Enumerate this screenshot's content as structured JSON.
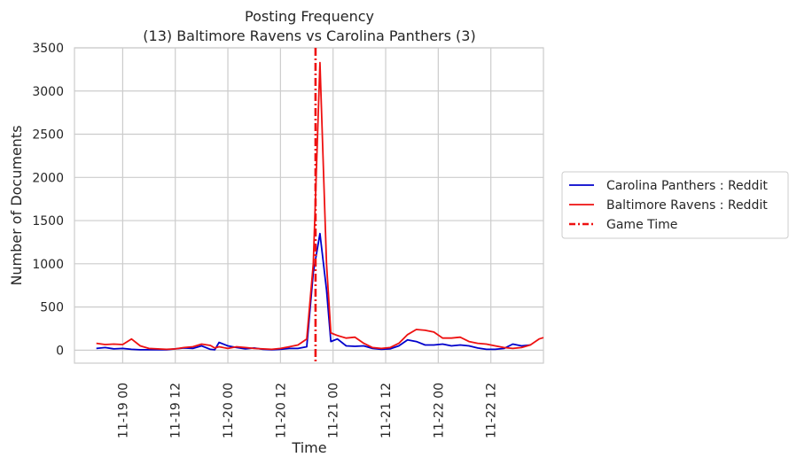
{
  "chart_data": {
    "type": "line",
    "title": "Posting Frequency",
    "subtitle": "(13) Baltimore Ravens vs Carolina Panthers (3)",
    "xlabel": "Time",
    "ylabel": "Number of Documents",
    "ylim": [
      -150,
      3500
    ],
    "xlim": [
      "2018-11-18 13:00",
      "2018-11-23 00:00"
    ],
    "grid": true,
    "legend_position": "right",
    "yticks": [
      0,
      500,
      1000,
      1500,
      2000,
      2500,
      3000,
      3500
    ],
    "xticks": [
      "2018-11-19 00:00",
      "2018-11-19 12:00",
      "2018-11-20 00:00",
      "2018-11-20 12:00",
      "2018-11-21 00:00",
      "2018-11-21 12:00",
      "2018-11-22 00:00",
      "2018-11-22 12:00"
    ],
    "xtick_labels": [
      "11-19 00",
      "11-19 12",
      "11-20 00",
      "11-20 12",
      "11-21 00",
      "11-21 12",
      "11-22 00",
      "11-22 12"
    ],
    "series": [
      {
        "name": "Carolina Panthers : Reddit",
        "color": "#0000cc",
        "points": [
          [
            "2018-11-18 18:00",
            20
          ],
          [
            "2018-11-18 20:00",
            30
          ],
          [
            "2018-11-18 22:00",
            15
          ],
          [
            "2018-11-19 00:00",
            20
          ],
          [
            "2018-11-19 02:00",
            10
          ],
          [
            "2018-11-19 04:00",
            5
          ],
          [
            "2018-11-19 06:00",
            5
          ],
          [
            "2018-11-19 08:00",
            5
          ],
          [
            "2018-11-19 10:00",
            5
          ],
          [
            "2018-11-19 12:00",
            15
          ],
          [
            "2018-11-19 14:00",
            25
          ],
          [
            "2018-11-19 16:00",
            20
          ],
          [
            "2018-11-19 18:00",
            50
          ],
          [
            "2018-11-19 20:00",
            10
          ],
          [
            "2018-11-19 21:00",
            5
          ],
          [
            "2018-11-19 22:00",
            90
          ],
          [
            "2018-11-20 00:00",
            50
          ],
          [
            "2018-11-20 02:00",
            30
          ],
          [
            "2018-11-20 04:00",
            15
          ],
          [
            "2018-11-20 06:00",
            25
          ],
          [
            "2018-11-20 08:00",
            10
          ],
          [
            "2018-11-20 10:00",
            5
          ],
          [
            "2018-11-20 12:00",
            10
          ],
          [
            "2018-11-20 14:00",
            20
          ],
          [
            "2018-11-20 16:00",
            20
          ],
          [
            "2018-11-20 18:00",
            40
          ],
          [
            "2018-11-20 19:30",
            900
          ],
          [
            "2018-11-20 21:00",
            1350
          ],
          [
            "2018-11-20 22:30",
            700
          ],
          [
            "2018-11-20 23:30",
            100
          ],
          [
            "2018-11-21 01:00",
            130
          ],
          [
            "2018-11-21 03:00",
            50
          ],
          [
            "2018-11-21 05:00",
            45
          ],
          [
            "2018-11-21 07:00",
            50
          ],
          [
            "2018-11-21 09:00",
            20
          ],
          [
            "2018-11-21 11:00",
            10
          ],
          [
            "2018-11-21 13:00",
            15
          ],
          [
            "2018-11-21 15:00",
            50
          ],
          [
            "2018-11-21 17:00",
            120
          ],
          [
            "2018-11-21 19:00",
            100
          ],
          [
            "2018-11-21 21:00",
            60
          ],
          [
            "2018-11-21 23:00",
            60
          ],
          [
            "2018-11-22 01:00",
            70
          ],
          [
            "2018-11-22 03:00",
            50
          ],
          [
            "2018-11-22 05:00",
            60
          ],
          [
            "2018-11-22 07:00",
            50
          ],
          [
            "2018-11-22 09:00",
            25
          ],
          [
            "2018-11-22 11:00",
            10
          ],
          [
            "2018-11-22 13:00",
            10
          ],
          [
            "2018-11-22 15:00",
            20
          ],
          [
            "2018-11-22 17:00",
            70
          ],
          [
            "2018-11-22 19:00",
            50
          ],
          [
            "2018-11-22 21:00",
            60
          ]
        ]
      },
      {
        "name": "Baltimore Ravens : Reddit",
        "color": "#ee1111",
        "points": [
          [
            "2018-11-18 18:00",
            80
          ],
          [
            "2018-11-18 20:00",
            65
          ],
          [
            "2018-11-18 22:00",
            70
          ],
          [
            "2018-11-19 00:00",
            65
          ],
          [
            "2018-11-19 02:00",
            130
          ],
          [
            "2018-11-19 04:00",
            50
          ],
          [
            "2018-11-19 06:00",
            20
          ],
          [
            "2018-11-19 08:00",
            15
          ],
          [
            "2018-11-19 10:00",
            10
          ],
          [
            "2018-11-19 12:00",
            15
          ],
          [
            "2018-11-19 14:00",
            30
          ],
          [
            "2018-11-19 16:00",
            40
          ],
          [
            "2018-11-19 18:00",
            70
          ],
          [
            "2018-11-19 20:00",
            55
          ],
          [
            "2018-11-19 21:00",
            25
          ],
          [
            "2018-11-19 22:00",
            40
          ],
          [
            "2018-11-20 00:00",
            20
          ],
          [
            "2018-11-20 02:00",
            40
          ],
          [
            "2018-11-20 04:00",
            30
          ],
          [
            "2018-11-20 06:00",
            20
          ],
          [
            "2018-11-20 08:00",
            15
          ],
          [
            "2018-11-20 10:00",
            10
          ],
          [
            "2018-11-20 12:00",
            20
          ],
          [
            "2018-11-20 14:00",
            40
          ],
          [
            "2018-11-20 16:00",
            60
          ],
          [
            "2018-11-20 18:00",
            130
          ],
          [
            "2018-11-20 19:30",
            1000
          ],
          [
            "2018-11-20 21:00",
            3330
          ],
          [
            "2018-11-20 22:30",
            1000
          ],
          [
            "2018-11-20 23:30",
            200
          ],
          [
            "2018-11-21 01:00",
            170
          ],
          [
            "2018-11-21 03:00",
            140
          ],
          [
            "2018-11-21 05:00",
            150
          ],
          [
            "2018-11-21 07:00",
            80
          ],
          [
            "2018-11-21 09:00",
            30
          ],
          [
            "2018-11-21 11:00",
            20
          ],
          [
            "2018-11-21 13:00",
            30
          ],
          [
            "2018-11-21 15:00",
            80
          ],
          [
            "2018-11-21 17:00",
            180
          ],
          [
            "2018-11-21 19:00",
            240
          ],
          [
            "2018-11-21 21:00",
            230
          ],
          [
            "2018-11-21 23:00",
            210
          ],
          [
            "2018-11-22 01:00",
            140
          ],
          [
            "2018-11-22 03:00",
            140
          ],
          [
            "2018-11-22 05:00",
            150
          ],
          [
            "2018-11-22 07:00",
            100
          ],
          [
            "2018-11-22 09:00",
            80
          ],
          [
            "2018-11-22 11:00",
            70
          ],
          [
            "2018-11-22 13:00",
            50
          ],
          [
            "2018-11-22 15:00",
            30
          ],
          [
            "2018-11-22 17:00",
            20
          ],
          [
            "2018-11-22 19:00",
            30
          ],
          [
            "2018-11-22 21:00",
            60
          ],
          [
            "2018-11-22 23:00",
            130
          ],
          [
            "2018-11-23 00:00",
            145
          ]
        ]
      }
    ],
    "game_time": {
      "name": "Game Time",
      "x": "2018-11-20 20:00",
      "color": "#ee1111",
      "style": "dash-dot"
    }
  }
}
